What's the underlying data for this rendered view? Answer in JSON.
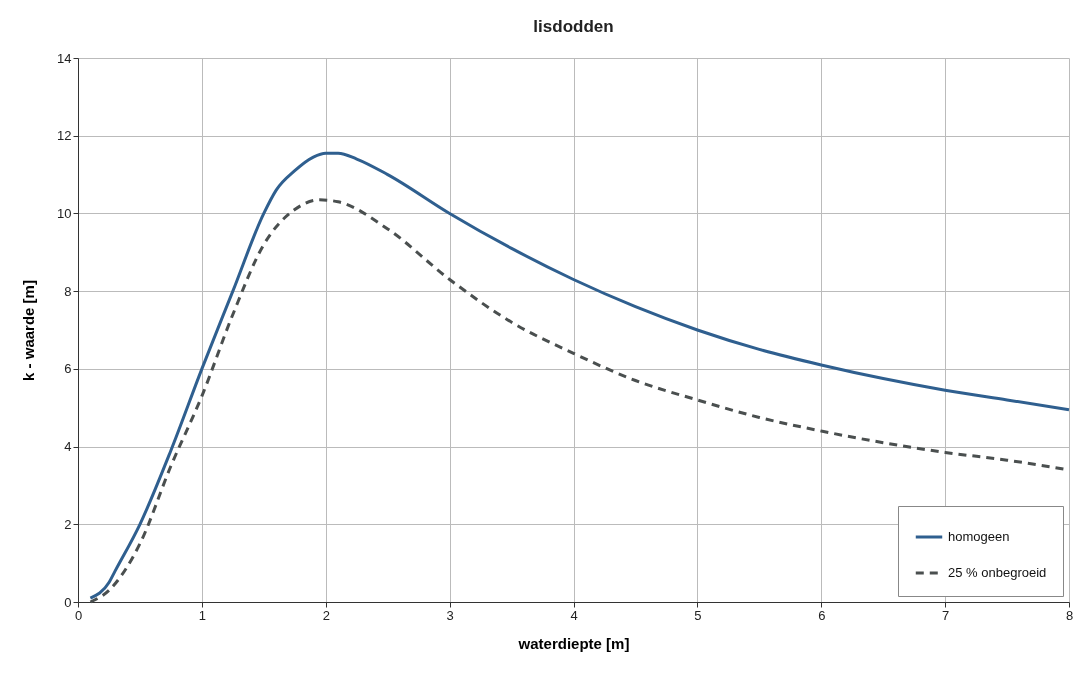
{
  "chart_data": {
    "type": "line",
    "title": "lisdodden",
    "xlabel": "waterdiepte  [m]",
    "ylabel": "k - waarde     [m]",
    "xlim": [
      0,
      8
    ],
    "xticks": [
      0,
      1,
      2,
      3,
      4,
      5,
      6,
      7,
      8
    ],
    "ylim": [
      0,
      14
    ],
    "yticks": [
      0,
      2,
      4,
      6,
      8,
      10,
      12,
      14
    ],
    "grid": true,
    "legend": "bottom right",
    "marker": "none",
    "series": [
      {
        "name": "homogeen",
        "color": "#2f5f8f",
        "line_style": "solid",
        "x": [
          0.1,
          0.25,
          0.3,
          0.5,
          0.75,
          1,
          1.25,
          1.5,
          1.6,
          1.75,
          1.9,
          2,
          2.1,
          2.25,
          2.5,
          3,
          3.5,
          4,
          4.5,
          5,
          5.5,
          6,
          6.5,
          7,
          7.5,
          8
        ],
        "values": [
          0.1,
          0.5,
          0.8,
          2,
          3.9,
          6,
          8,
          10,
          10.6,
          11.1,
          11.45,
          11.55,
          11.55,
          11.4,
          11,
          10,
          9.1,
          8.3,
          7.6,
          7,
          6.5,
          6.1,
          5.75,
          5.45,
          5.2,
          4.95
        ]
      },
      {
        "name": "25 % onbegroeid",
        "color": "#4a4f4f",
        "line_style": "dashed",
        "x": [
          0.1,
          0.25,
          0.5,
          0.75,
          1,
          1.25,
          1.5,
          1.75,
          1.95,
          2.1,
          2.5,
          3,
          3.5,
          4,
          4.5,
          5,
          5.5,
          6,
          6.5,
          7,
          7.5,
          8
        ],
        "values": [
          0,
          0.3,
          1.5,
          3.5,
          5.3,
          7.4,
          9.2,
          10.1,
          10.35,
          10.3,
          9.6,
          8.3,
          7.2,
          6.4,
          5.7,
          5.2,
          4.75,
          4.4,
          4.1,
          3.85,
          3.65,
          3.4
        ]
      }
    ]
  }
}
